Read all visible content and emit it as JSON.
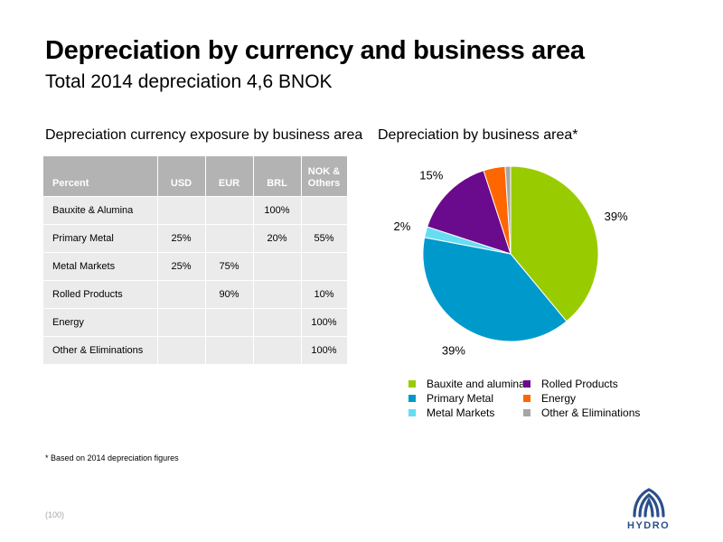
{
  "header": {
    "title": "Depreciation by currency and business area",
    "subtitle": "Total 2014 depreciation 4,6 BNOK"
  },
  "table": {
    "caption": "Depreciation currency exposure by business area",
    "columns": [
      "Percent",
      "USD",
      "EUR",
      "BRL",
      "NOK & Others"
    ],
    "rows": [
      {
        "label": "Bauxite & Alumina",
        "cells": [
          "",
          "",
          "100%",
          ""
        ]
      },
      {
        "label": "Primary Metal",
        "cells": [
          "25%",
          "",
          "20%",
          "55%"
        ]
      },
      {
        "label": "Metal Markets",
        "cells": [
          "25%",
          "75%",
          "",
          ""
        ]
      },
      {
        "label": "Rolled Products",
        "cells": [
          "",
          "90%",
          "",
          "10%"
        ]
      },
      {
        "label": "Energy",
        "cells": [
          "",
          "",
          "",
          "100%"
        ]
      },
      {
        "label": "Other & Eliminations",
        "cells": [
          "",
          "",
          "",
          "100%"
        ]
      }
    ]
  },
  "chart_data": {
    "type": "pie",
    "title": "Depreciation by business area*",
    "categories": [
      "Bauxite and alumina",
      "Primary Metal",
      "Metal Markets",
      "Rolled Products",
      "Energy",
      "Other & Eliminations"
    ],
    "values": [
      39,
      39,
      2,
      15,
      4,
      1
    ],
    "labels": [
      "39%",
      "39%",
      "2%",
      "15%",
      "4%",
      "1%"
    ],
    "colors": [
      "#99cc00",
      "#0099cc",
      "#66ddf2",
      "#6a0a8c",
      "#ff6600",
      "#a6a6a6"
    ],
    "start_angle_deg": 0,
    "direction": "clockwise",
    "legend_position": "bottom"
  },
  "footnote": "* Based on 2014 depreciation figures",
  "page_number": "(100)",
  "logo": {
    "icon": "hydro-logo-icon",
    "text": "HYDRO",
    "color": "#2b4f8c"
  }
}
